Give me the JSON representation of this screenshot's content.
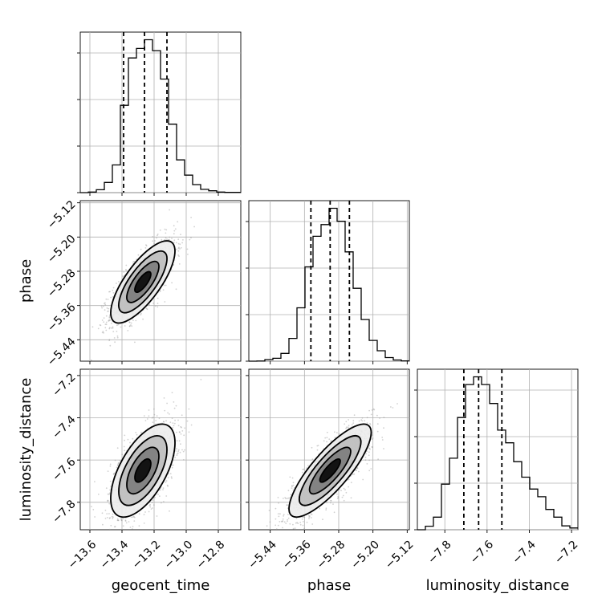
{
  "chart_data": {
    "type": "corner",
    "parameters": [
      {
        "name": "geocent_time",
        "label": "geocent_time",
        "lim": [
          -13.66,
          -12.66
        ],
        "ticks": [
          -13.6,
          -13.4,
          -13.2,
          -13.0,
          -12.8
        ],
        "tick_labels": [
          "−13.6",
          "−13.4",
          "−13.2",
          "−13.0",
          "−12.8"
        ],
        "quantiles": [
          -13.39,
          -13.26,
          -13.12
        ]
      },
      {
        "name": "phase",
        "label": "phase",
        "lim": [
          -5.49,
          -5.115
        ],
        "ticks": [
          -5.44,
          -5.36,
          -5.28,
          -5.2,
          -5.12
        ],
        "tick_labels": [
          "−5.44",
          "−5.36",
          "−5.28",
          "−5.20",
          "−5.12"
        ],
        "quantiles": [
          -5.345,
          -5.3,
          -5.255
        ]
      },
      {
        "name": "luminosity_distance",
        "label": "luminosity_distance",
        "lim": [
          -7.93,
          -7.17
        ],
        "ticks": [
          -7.8,
          -7.6,
          -7.4,
          -7.2
        ],
        "tick_labels": [
          "−7.8",
          "−7.6",
          "−7.4",
          "−7.2"
        ],
        "quantiles": [
          -7.71,
          -7.64,
          -7.53
        ]
      }
    ],
    "histograms": [
      {
        "param": "geocent_time",
        "bin_edges": [
          -13.66,
          -13.61,
          -13.56,
          -13.51,
          -13.46,
          -13.41,
          -13.36,
          -13.31,
          -13.26,
          -13.21,
          -13.16,
          -13.11,
          -13.06,
          -13.01,
          -12.96,
          -12.91,
          -12.86,
          -12.81,
          -12.76,
          -12.71,
          -12.66
        ],
        "counts": [
          0,
          8,
          40,
          140,
          380,
          1200,
          1850,
          1980,
          2100,
          1950,
          1560,
          940,
          450,
          240,
          110,
          45,
          25,
          8,
          3,
          3
        ]
      },
      {
        "param": "phase",
        "bin_edges": [
          -5.49,
          -5.4713,
          -5.4525,
          -5.4338,
          -5.415,
          -5.3963,
          -5.3775,
          -5.3588,
          -5.34,
          -5.3213,
          -5.3025,
          -5.2838,
          -5.265,
          -5.2463,
          -5.2275,
          -5.2088,
          -5.19,
          -5.1713,
          -5.1525,
          -5.1338,
          -5.115
        ],
        "counts": [
          0,
          3,
          25,
          45,
          120,
          350,
          820,
          1450,
          1920,
          2100,
          2350,
          2150,
          1680,
          1120,
          640,
          320,
          160,
          55,
          18,
          5
        ]
      },
      {
        "param": "luminosity_distance",
        "bin_edges": [
          -7.93,
          -7.892,
          -7.854,
          -7.816,
          -7.778,
          -7.74,
          -7.702,
          -7.664,
          -7.626,
          -7.588,
          -7.55,
          -7.512,
          -7.474,
          -7.436,
          -7.398,
          -7.36,
          -7.322,
          -7.284,
          -7.246,
          -7.208,
          -7.17
        ],
        "counts": [
          0,
          50,
          180,
          650,
          1020,
          1600,
          2070,
          2180,
          2070,
          1800,
          1420,
          1240,
          970,
          750,
          580,
          470,
          290,
          180,
          55,
          25
        ]
      }
    ],
    "joint_2d": [
      {
        "x": "geocent_time",
        "y": "phase",
        "mean": [
          -13.27,
          -5.305
        ],
        "sd": [
          0.1,
          0.048
        ],
        "corr": 0.75
      },
      {
        "x": "geocent_time",
        "y": "luminosity_distance",
        "mean": [
          -13.27,
          -7.65
        ],
        "sd": [
          0.1,
          0.11
        ],
        "corr": 0.6
      },
      {
        "x": "phase",
        "y": "luminosity_distance",
        "mean": [
          -5.3,
          -7.65
        ],
        "sd": [
          0.048,
          0.11
        ],
        "corr": 0.82
      }
    ],
    "contour_levels_sigma": [
      0.5,
      1.0,
      1.5,
      2.0
    ],
    "grid": true
  }
}
